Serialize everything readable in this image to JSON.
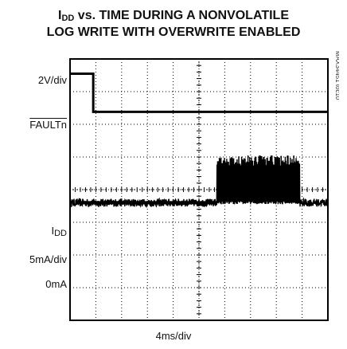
{
  "title": {
    "line1_prefix": "I",
    "line1_sub": "DD",
    "line1_rest": " vs. TIME DURING A NONVOLATILE",
    "line2": "LOG WRITE WITH OVERWRITE ENABLED"
  },
  "labels": {
    "ch1_scale": "2V/div",
    "ch1_name": "FAULTn",
    "ch2_name_prefix": "I",
    "ch2_name_sub": "DD",
    "ch2_scale": "5mA/div",
    "ch2_zero": "0mA",
    "x_scale": "4ms/div",
    "figure_id": "MAX34451 toc10"
  },
  "chart_data": {
    "type": "line",
    "title": "IDD vs. TIME DURING A NONVOLATILE LOG WRITE WITH OVERWRITE ENABLED",
    "xlabel": "4ms/div",
    "grid": true,
    "x_divisions": 10,
    "y_divisions": 8,
    "x_unit": "div",
    "series": [
      {
        "name": "FAULTn",
        "scale": "2V/div",
        "points": [
          [
            0,
            7.55
          ],
          [
            0.9,
            7.55
          ],
          [
            0.9,
            6.38
          ],
          [
            10,
            6.38
          ]
        ]
      },
      {
        "name": "IDD",
        "scale": "5mA/div",
        "zero_label": "0mA",
        "baseline_div": 3.6,
        "noise_div": 0.12,
        "burst": {
          "x_start": 5.7,
          "x_end": 8.9,
          "low_div": 3.55,
          "high_div": 5.05
        }
      }
    ]
  }
}
